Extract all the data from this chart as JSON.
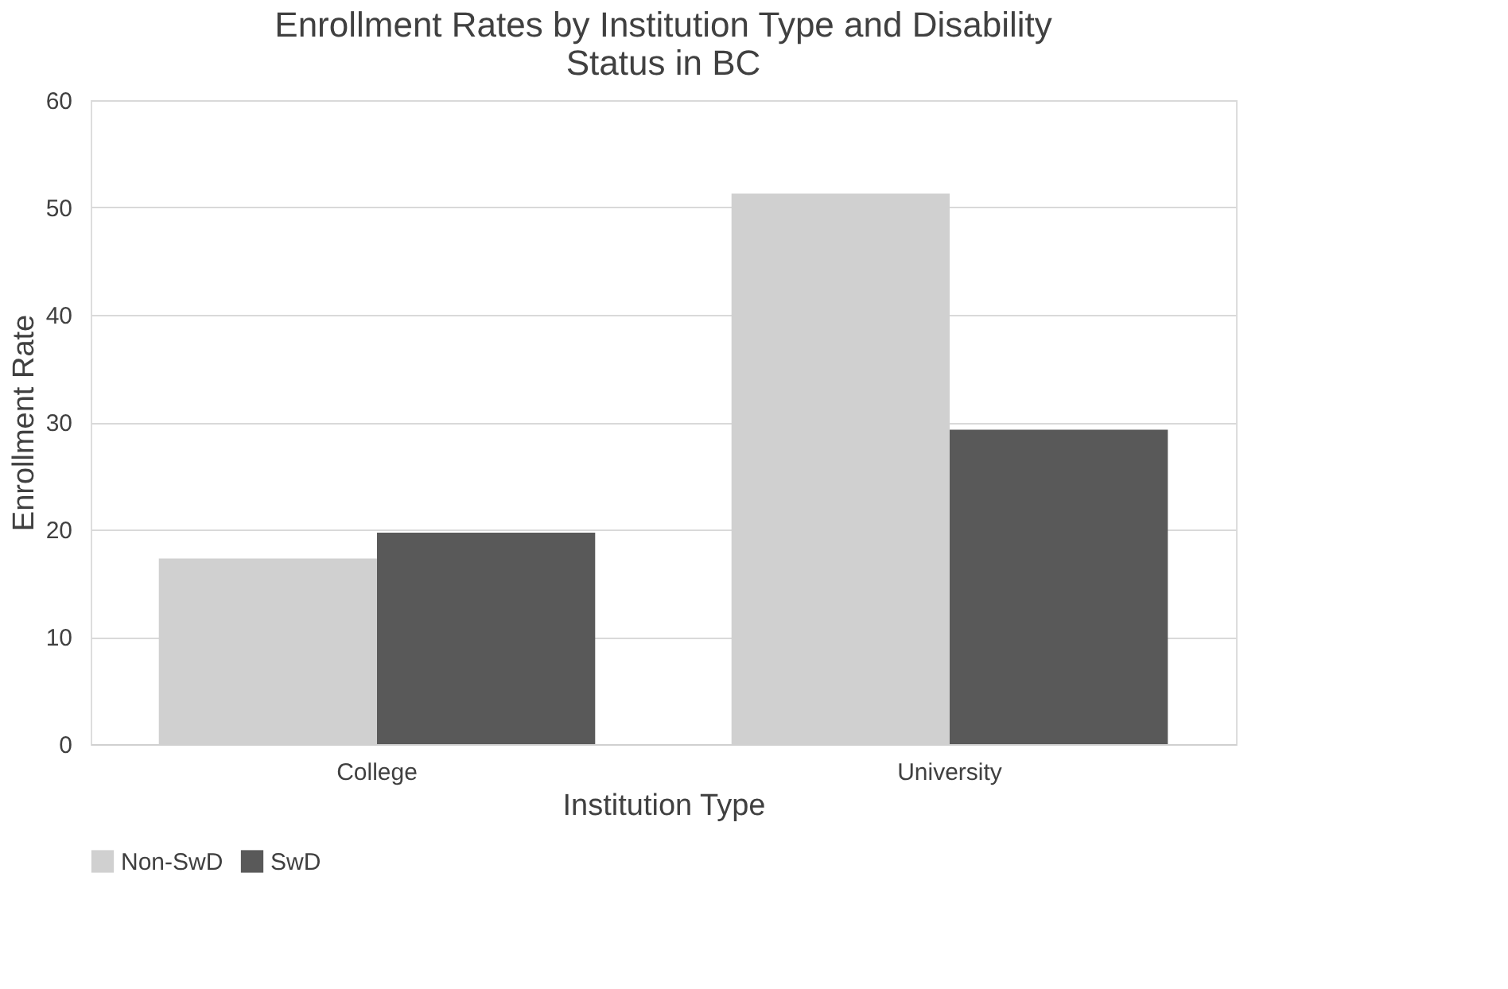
{
  "chart_data": {
    "type": "bar",
    "title": "Enrollment Rates by Institution Type and Disability Status in BC",
    "xlabel": "Institution Type",
    "ylabel": "Enrollment Rate",
    "categories": [
      "College",
      "University"
    ],
    "series": [
      {
        "name": "Non-SwD",
        "color": "#d0d0d0",
        "values": [
          17.3,
          51.3
        ]
      },
      {
        "name": "SwD",
        "color": "#595959",
        "values": [
          19.7,
          29.3
        ]
      }
    ],
    "ylim": [
      0,
      60
    ],
    "yticks": [
      0,
      10,
      20,
      30,
      40,
      50,
      60
    ],
    "grid": "y",
    "legend": "bottom"
  }
}
